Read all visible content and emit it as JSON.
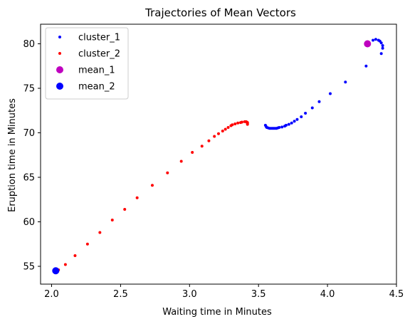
{
  "chart_data": {
    "type": "scatter",
    "title": "Trajectories of Mean Vectors",
    "xlabel": "Waiting time in Minutes",
    "ylabel": "Eruption time in Minutes",
    "xlim": [
      1.92,
      4.5
    ],
    "ylim": [
      53.0,
      82.2
    ],
    "xticks": [
      2.0,
      2.5,
      3.0,
      3.5,
      4.0,
      4.5
    ],
    "xtick_labels": [
      "2.0",
      "2.5",
      "3.0",
      "3.5",
      "4.0",
      "4.5"
    ],
    "yticks": [
      55,
      60,
      65,
      70,
      75,
      80
    ],
    "ytick_labels": [
      "55",
      "60",
      "65",
      "70",
      "75",
      "80"
    ],
    "grid": false,
    "legend_position": "top-left",
    "series": [
      {
        "name": "cluster_1",
        "color": "#0000ff",
        "marker": "small-dot",
        "x": [
          4.3,
          4.33,
          4.35,
          4.37,
          4.38,
          4.39,
          4.4,
          4.4,
          4.39,
          4.28,
          4.13,
          4.02,
          3.94,
          3.89,
          3.84,
          3.81,
          3.78,
          3.76,
          3.74,
          3.72,
          3.7,
          3.69,
          3.67,
          3.65,
          3.64,
          3.63,
          3.62,
          3.61,
          3.6,
          3.59,
          3.58,
          3.57,
          3.56,
          3.555,
          3.55
        ],
        "y": [
          80.1,
          80.4,
          80.5,
          80.4,
          80.3,
          80.1,
          79.8,
          79.5,
          78.9,
          77.5,
          75.7,
          74.4,
          73.5,
          72.8,
          72.2,
          71.8,
          71.5,
          71.3,
          71.1,
          70.95,
          70.85,
          70.75,
          70.65,
          70.6,
          70.55,
          70.5,
          70.5,
          70.5,
          70.5,
          70.5,
          70.5,
          70.55,
          70.6,
          70.7,
          70.85
        ]
      },
      {
        "name": "cluster_2",
        "color": "#ff0000",
        "marker": "small-dot",
        "x": [
          2.05,
          2.1,
          2.17,
          2.26,
          2.35,
          2.44,
          2.53,
          2.62,
          2.73,
          2.84,
          2.94,
          3.02,
          3.09,
          3.14,
          3.18,
          3.21,
          3.24,
          3.26,
          3.28,
          3.3,
          3.31,
          3.33,
          3.35,
          3.37,
          3.38,
          3.4,
          3.41,
          3.415,
          3.42,
          3.42,
          3.42
        ],
        "y": [
          54.6,
          55.2,
          56.2,
          57.5,
          58.8,
          60.2,
          61.4,
          62.7,
          64.1,
          65.5,
          66.8,
          67.8,
          68.5,
          69.1,
          69.6,
          69.9,
          70.2,
          70.4,
          70.6,
          70.8,
          70.9,
          71.0,
          71.1,
          71.15,
          71.2,
          71.25,
          71.25,
          71.2,
          71.15,
          71.05,
          70.95
        ]
      },
      {
        "name": "mean_1",
        "color": "#bf00bf",
        "marker": "large-dot",
        "x": [
          4.29
        ],
        "y": [
          80.0
        ]
      },
      {
        "name": "mean_2",
        "color": "#0000ff",
        "marker": "large-dot",
        "x": [
          2.03
        ],
        "y": [
          54.5
        ]
      }
    ]
  }
}
